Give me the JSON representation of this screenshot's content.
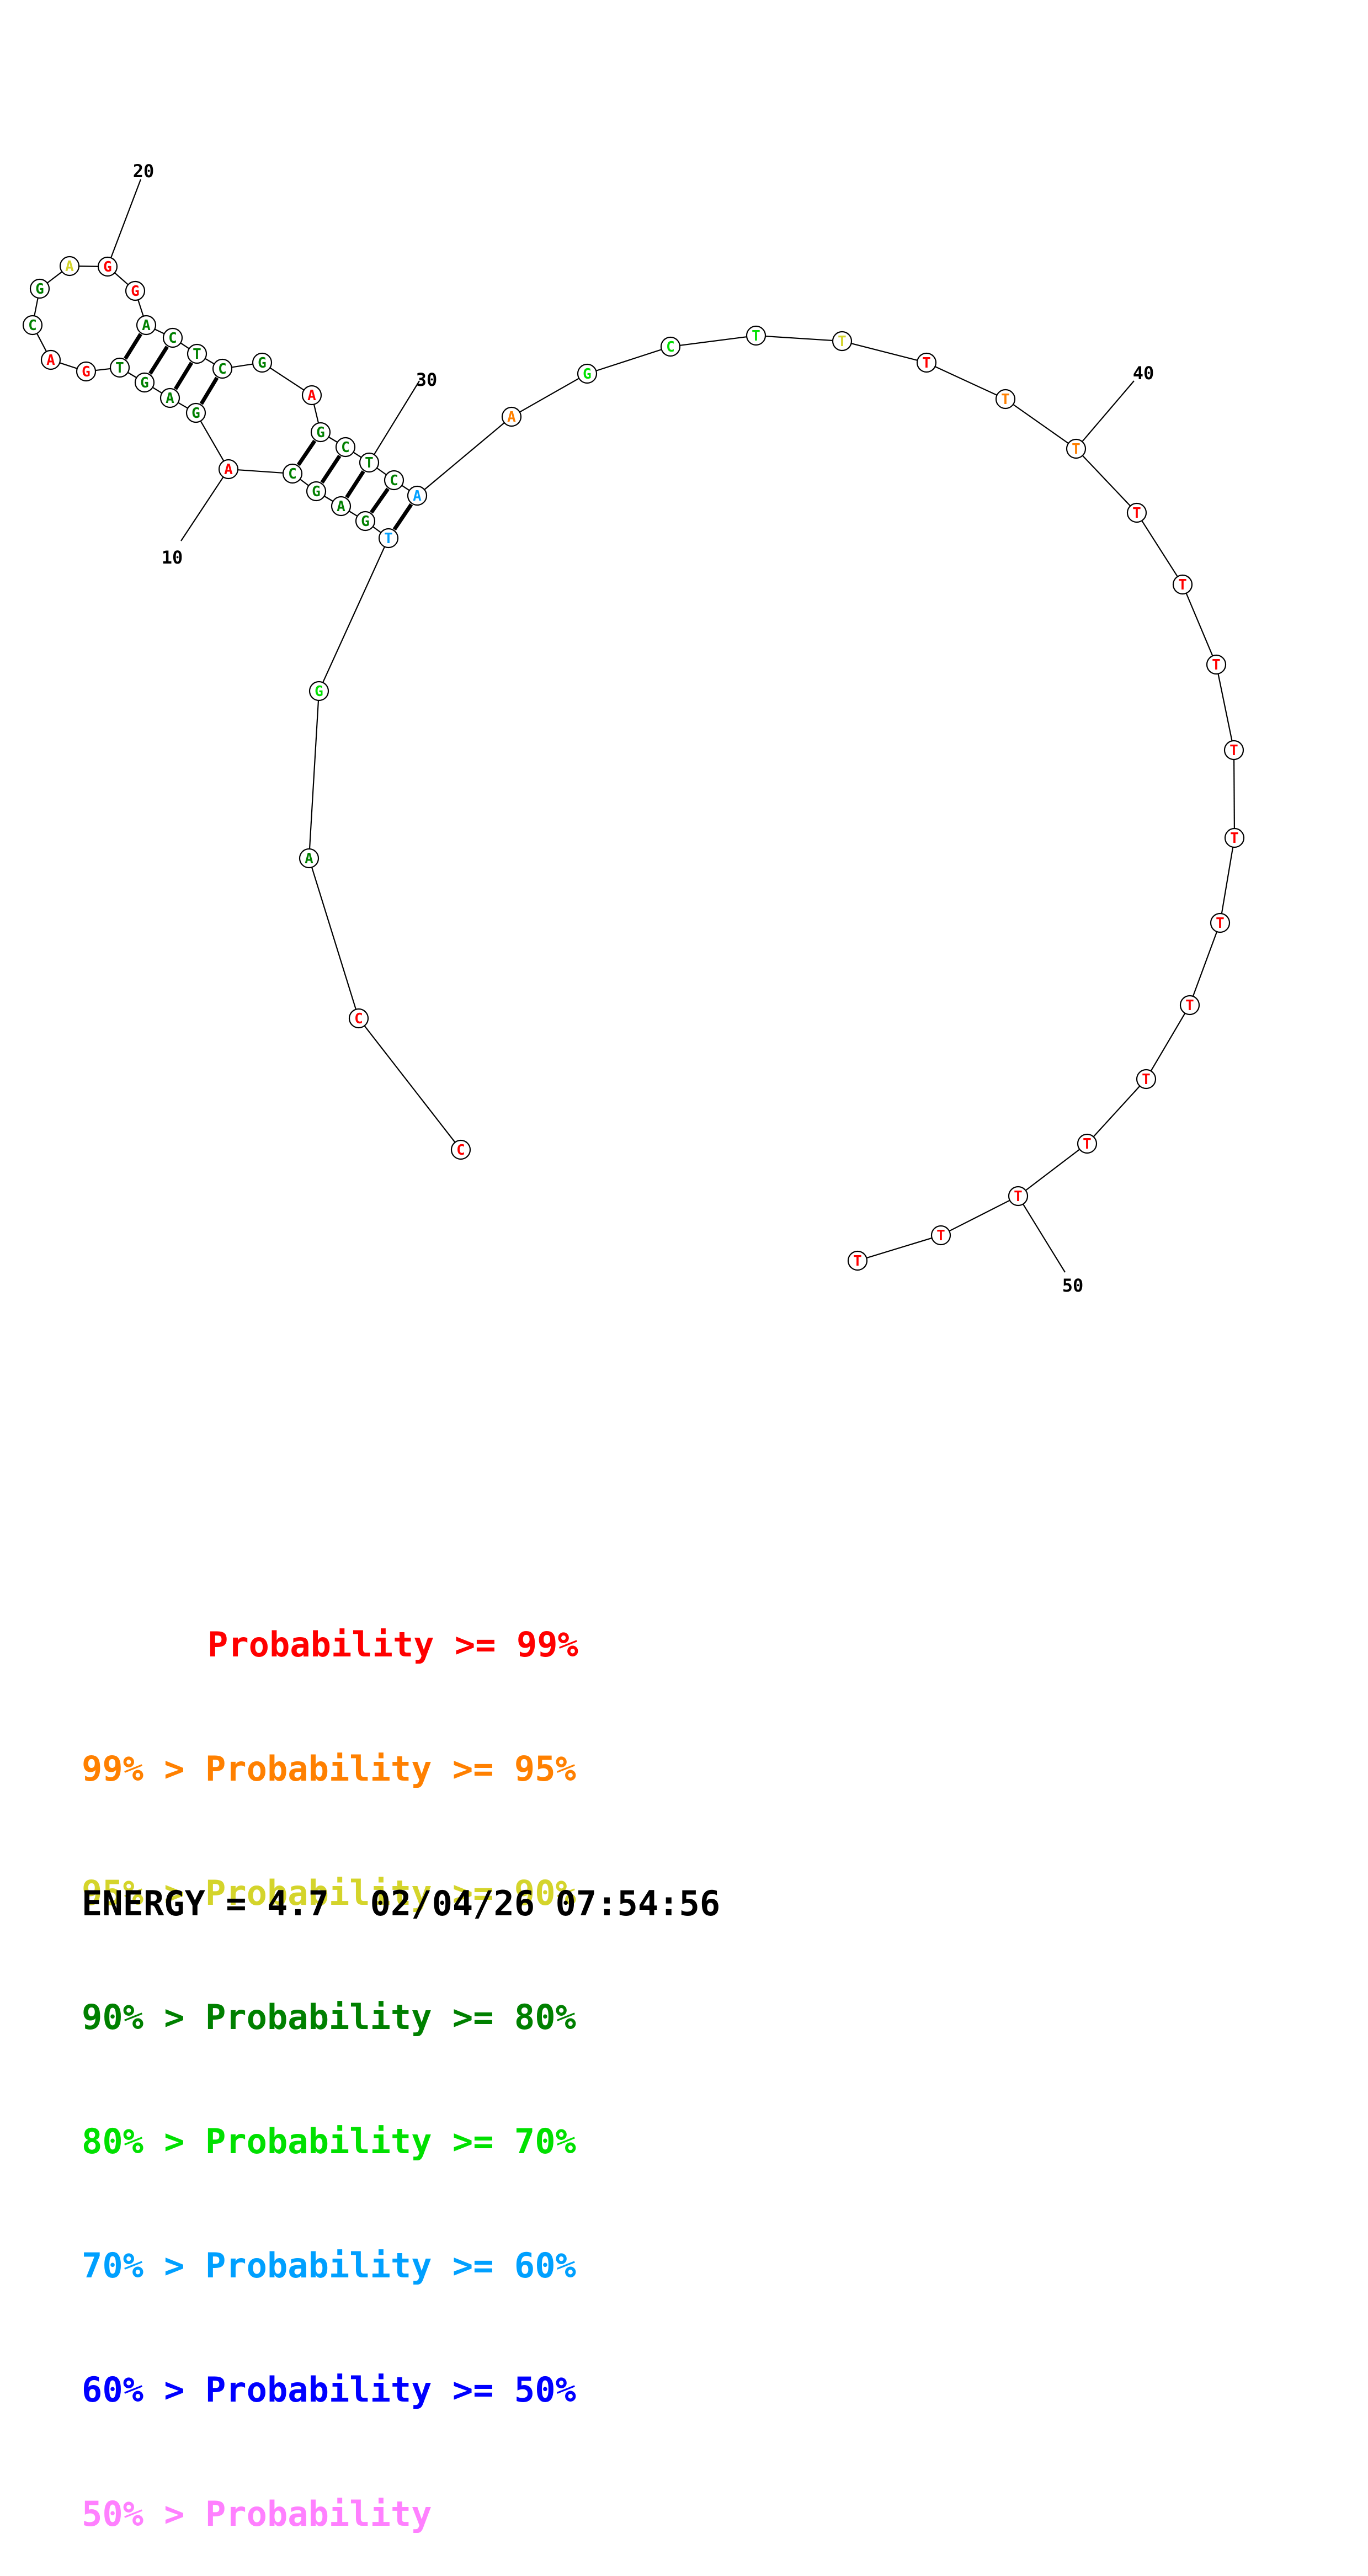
{
  "colors": {
    "p99": "#ff0000",
    "p95": "#ff8000",
    "p90": "#d4d42b",
    "p80": "#008000",
    "p70": "#00e000",
    "p60": "#00a0ff",
    "p50": "#0000ff",
    "plow": "#ff80ff"
  },
  "nucleotides": [
    {
      "n": 1,
      "base": "C",
      "prob": "p99"
    },
    {
      "n": 2,
      "base": "C",
      "prob": "p99"
    },
    {
      "n": 3,
      "base": "A",
      "prob": "p80"
    },
    {
      "n": 4,
      "base": "G",
      "prob": "p70"
    },
    {
      "n": 5,
      "base": "T",
      "prob": "p60"
    },
    {
      "n": 6,
      "base": "G",
      "prob": "p80"
    },
    {
      "n": 7,
      "base": "A",
      "prob": "p80"
    },
    {
      "n": 8,
      "base": "G",
      "prob": "p80"
    },
    {
      "n": 9,
      "base": "C",
      "prob": "p80"
    },
    {
      "n": 10,
      "base": "A",
      "prob": "p99"
    },
    {
      "n": 11,
      "base": "G",
      "prob": "p80"
    },
    {
      "n": 12,
      "base": "A",
      "prob": "p80"
    },
    {
      "n": 13,
      "base": "G",
      "prob": "p80"
    },
    {
      "n": 14,
      "base": "T",
      "prob": "p80"
    },
    {
      "n": 15,
      "base": "G",
      "prob": "p99"
    },
    {
      "n": 16,
      "base": "A",
      "prob": "p99"
    },
    {
      "n": 17,
      "base": "C",
      "prob": "p80"
    },
    {
      "n": 18,
      "base": "G",
      "prob": "p80"
    },
    {
      "n": 19,
      "base": "A",
      "prob": "p90"
    },
    {
      "n": 20,
      "base": "G",
      "prob": "p99"
    },
    {
      "n": 21,
      "base": "G",
      "prob": "p99"
    },
    {
      "n": 22,
      "base": "A",
      "prob": "p80"
    },
    {
      "n": 23,
      "base": "C",
      "prob": "p80"
    },
    {
      "n": 24,
      "base": "T",
      "prob": "p80"
    },
    {
      "n": 25,
      "base": "C",
      "prob": "p80"
    },
    {
      "n": 26,
      "base": "G",
      "prob": "p80"
    },
    {
      "n": 27,
      "base": "A",
      "prob": "p99"
    },
    {
      "n": 28,
      "base": "G",
      "prob": "p80"
    },
    {
      "n": 29,
      "base": "C",
      "prob": "p80"
    },
    {
      "n": 30,
      "base": "T",
      "prob": "p80"
    },
    {
      "n": 31,
      "base": "C",
      "prob": "p80"
    },
    {
      "n": 32,
      "base": "A",
      "prob": "p60"
    },
    {
      "n": 33,
      "base": "A",
      "prob": "p95"
    },
    {
      "n": 34,
      "base": "G",
      "prob": "p70"
    },
    {
      "n": 35,
      "base": "C",
      "prob": "p70"
    },
    {
      "n": 36,
      "base": "T",
      "prob": "p70"
    },
    {
      "n": 37,
      "base": "T",
      "prob": "p90"
    },
    {
      "n": 38,
      "base": "T",
      "prob": "p99"
    },
    {
      "n": 39,
      "base": "T",
      "prob": "p95"
    },
    {
      "n": 40,
      "base": "T",
      "prob": "p95"
    },
    {
      "n": 41,
      "base": "T",
      "prob": "p99"
    },
    {
      "n": 42,
      "base": "T",
      "prob": "p99"
    },
    {
      "n": 43,
      "base": "T",
      "prob": "p99"
    },
    {
      "n": 44,
      "base": "T",
      "prob": "p99"
    },
    {
      "n": 45,
      "base": "T",
      "prob": "p99"
    },
    {
      "n": 46,
      "base": "T",
      "prob": "p99"
    },
    {
      "n": 47,
      "base": "T",
      "prob": "p99"
    },
    {
      "n": 48,
      "base": "T",
      "prob": "p99"
    },
    {
      "n": 49,
      "base": "T",
      "prob": "p99"
    },
    {
      "n": 50,
      "base": "T",
      "prob": "p99"
    },
    {
      "n": 51,
      "base": "T",
      "prob": "p99"
    },
    {
      "n": 52,
      "base": "T",
      "prob": "p99"
    }
  ],
  "base_pairs": [
    [
      5,
      32
    ],
    [
      6,
      31
    ],
    [
      7,
      30
    ],
    [
      8,
      29
    ],
    [
      9,
      28
    ],
    [
      11,
      25
    ],
    [
      12,
      24
    ],
    [
      13,
      23
    ],
    [
      14,
      22
    ]
  ],
  "position_labels": [
    "10",
    "20",
    "30",
    "40",
    "50"
  ],
  "legend": [
    {
      "prefix": "",
      "text": "Probability >= 99%",
      "color": "p99"
    },
    {
      "prefix": "99% > ",
      "text": "Probability >= 95%",
      "color": "p95"
    },
    {
      "prefix": "95% > ",
      "text": "Probability >= 90%",
      "color": "p90"
    },
    {
      "prefix": "90% > ",
      "text": "Probability >= 80%",
      "color": "p80"
    },
    {
      "prefix": "80% > ",
      "text": "Probability >= 70%",
      "color": "p70"
    },
    {
      "prefix": "70% > ",
      "text": "Probability >= 60%",
      "color": "p60"
    },
    {
      "prefix": "60% > ",
      "text": "Probability >= 50%",
      "color": "p50"
    },
    {
      "prefix": "50% > ",
      "text": "Probability",
      "color": "plow"
    }
  ],
  "energy": {
    "label": "ENERGY = 4.7",
    "timestamp": "02/04/26 07:54:56"
  }
}
